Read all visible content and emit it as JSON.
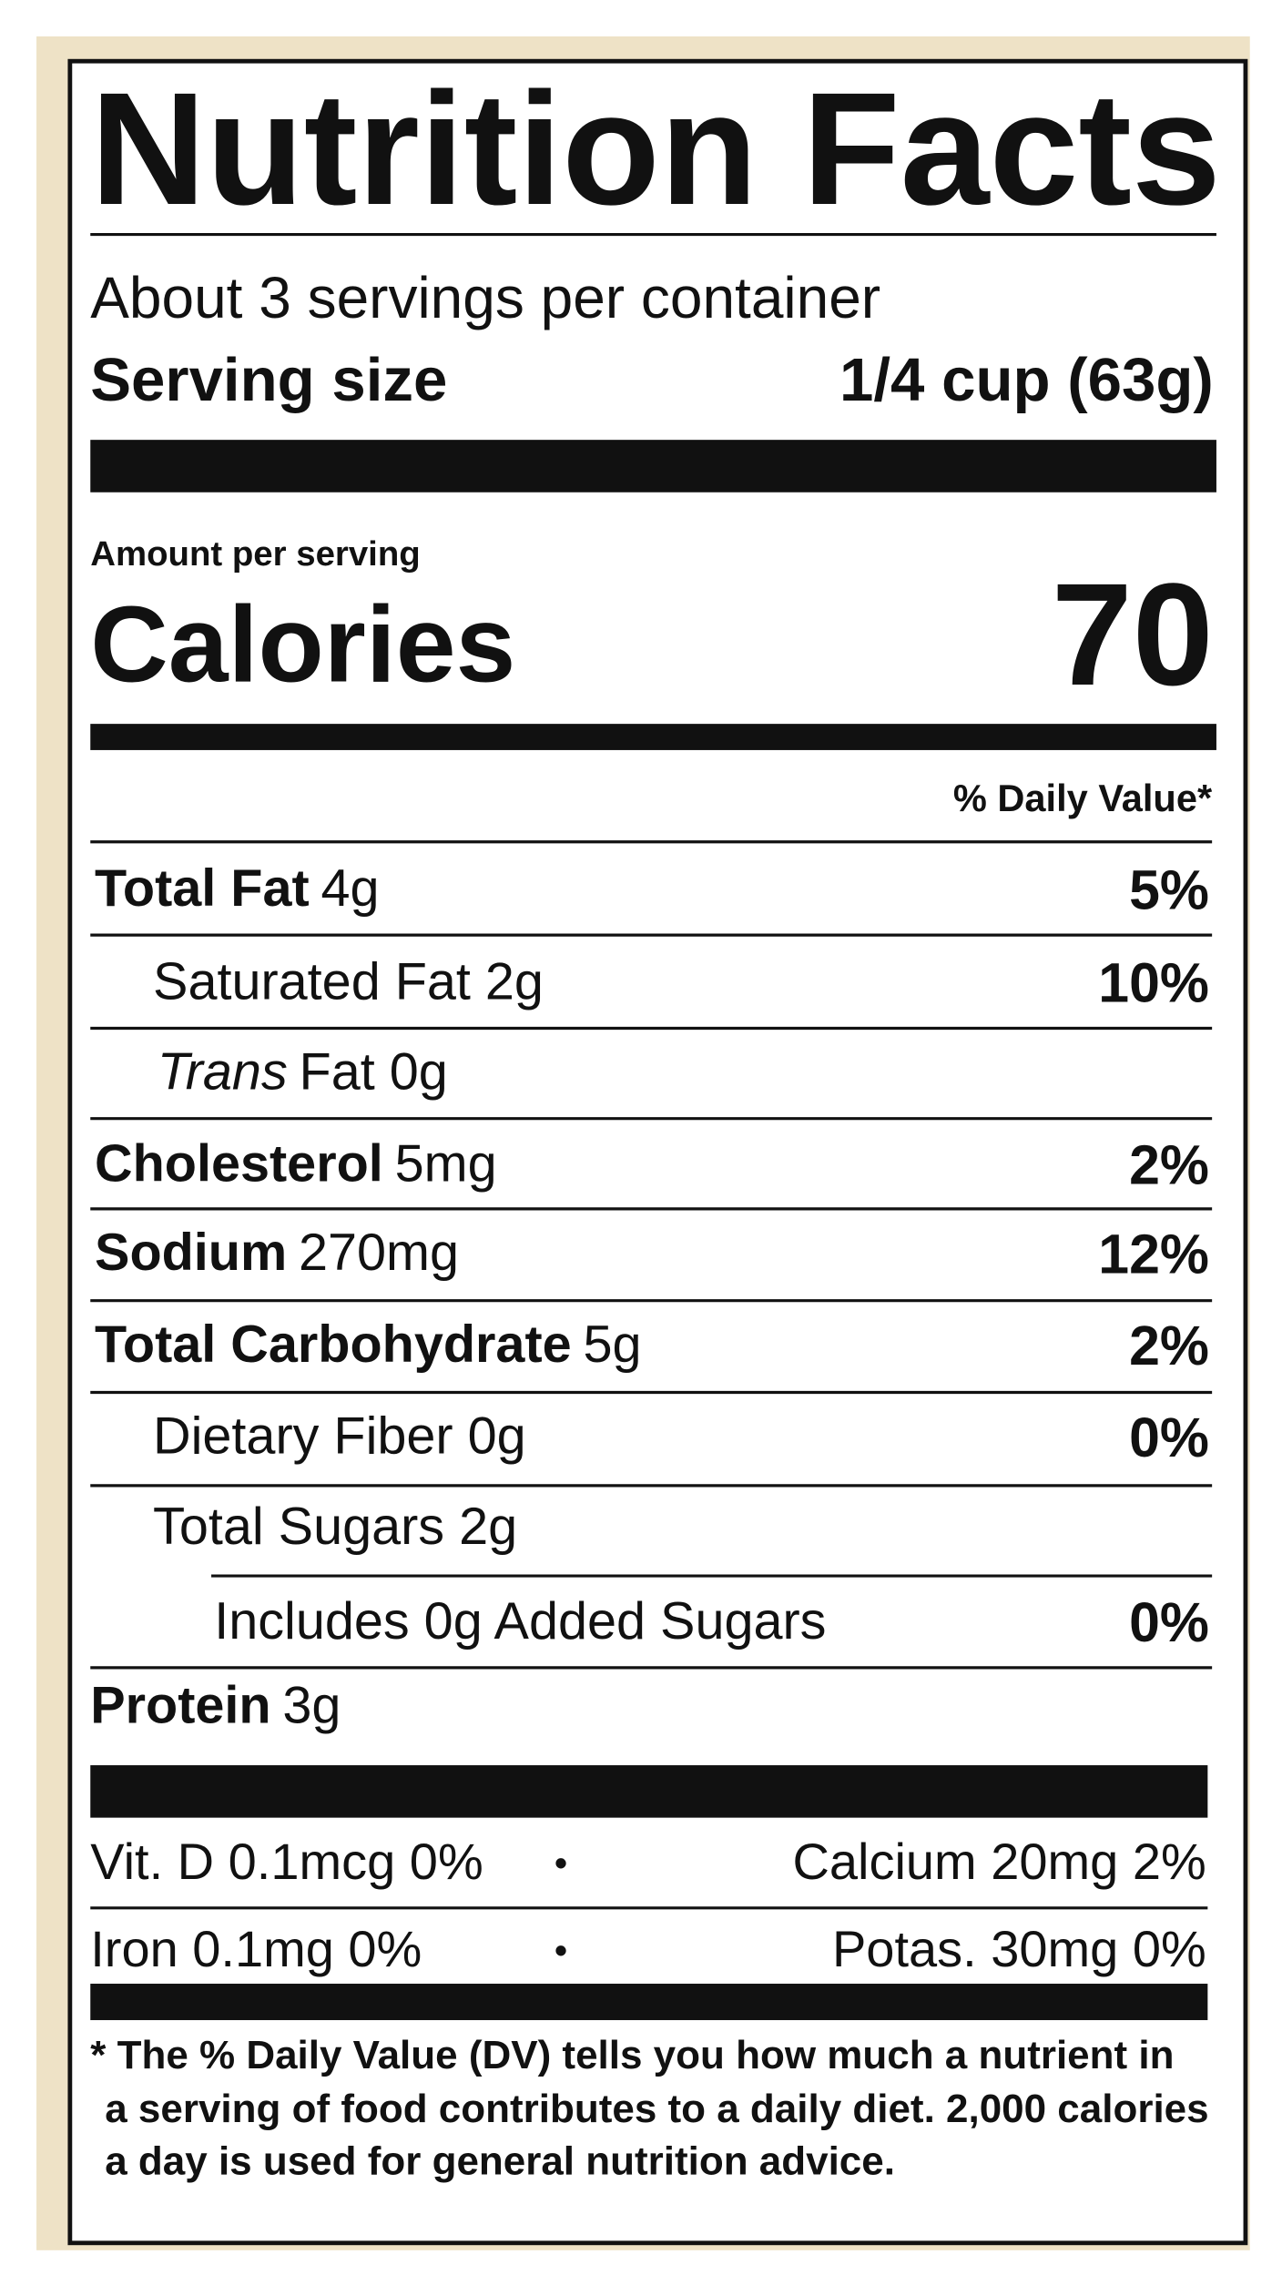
{
  "header": {
    "title": "Nutrition Facts"
  },
  "servings": {
    "per_container": "About 3 servings per container",
    "size_label": "Serving size",
    "size_value": "1/4 cup (63g)"
  },
  "calories": {
    "amount_label": "Amount per serving",
    "label": "Calories",
    "value": "70"
  },
  "daily_value_header": "% Daily Value*",
  "nutrients": [
    {
      "name": "Total Fat",
      "amount": "4g",
      "dv": "5%"
    },
    {
      "name": "Saturated Fat 2g",
      "dv": "10%"
    },
    {
      "name": "Trans",
      "amount": "Fat 0g"
    },
    {
      "name": "Cholesterol",
      "amount": "5mg",
      "dv": "2%"
    },
    {
      "name": "Sodium",
      "amount": "270mg",
      "dv": "12%"
    },
    {
      "name": "Total Carbohydrate",
      "amount": "5g",
      "dv": "2%"
    },
    {
      "name": "Dietary Fiber 0g",
      "dv": "0%"
    },
    {
      "name": "Total Sugars 2g"
    },
    {
      "name": "Includes 0g Added Sugars",
      "dv": "0%"
    },
    {
      "name": "Protein",
      "amount": "3g"
    }
  ],
  "vitamins": {
    "separator": "•",
    "rows": [
      {
        "left": "Vit. D 0.1mcg 0%",
        "right": "Calcium 20mg 2%"
      },
      {
        "left": "Iron 0.1mg 0%",
        "right": "Potas. 30mg 0%"
      }
    ]
  },
  "footnote": [
    "* The % Daily Value (DV) tells you how much a nutrient in",
    "a serving of food contributes to a daily diet. 2,000 calories",
    "a day is used for general nutrition advice."
  ]
}
